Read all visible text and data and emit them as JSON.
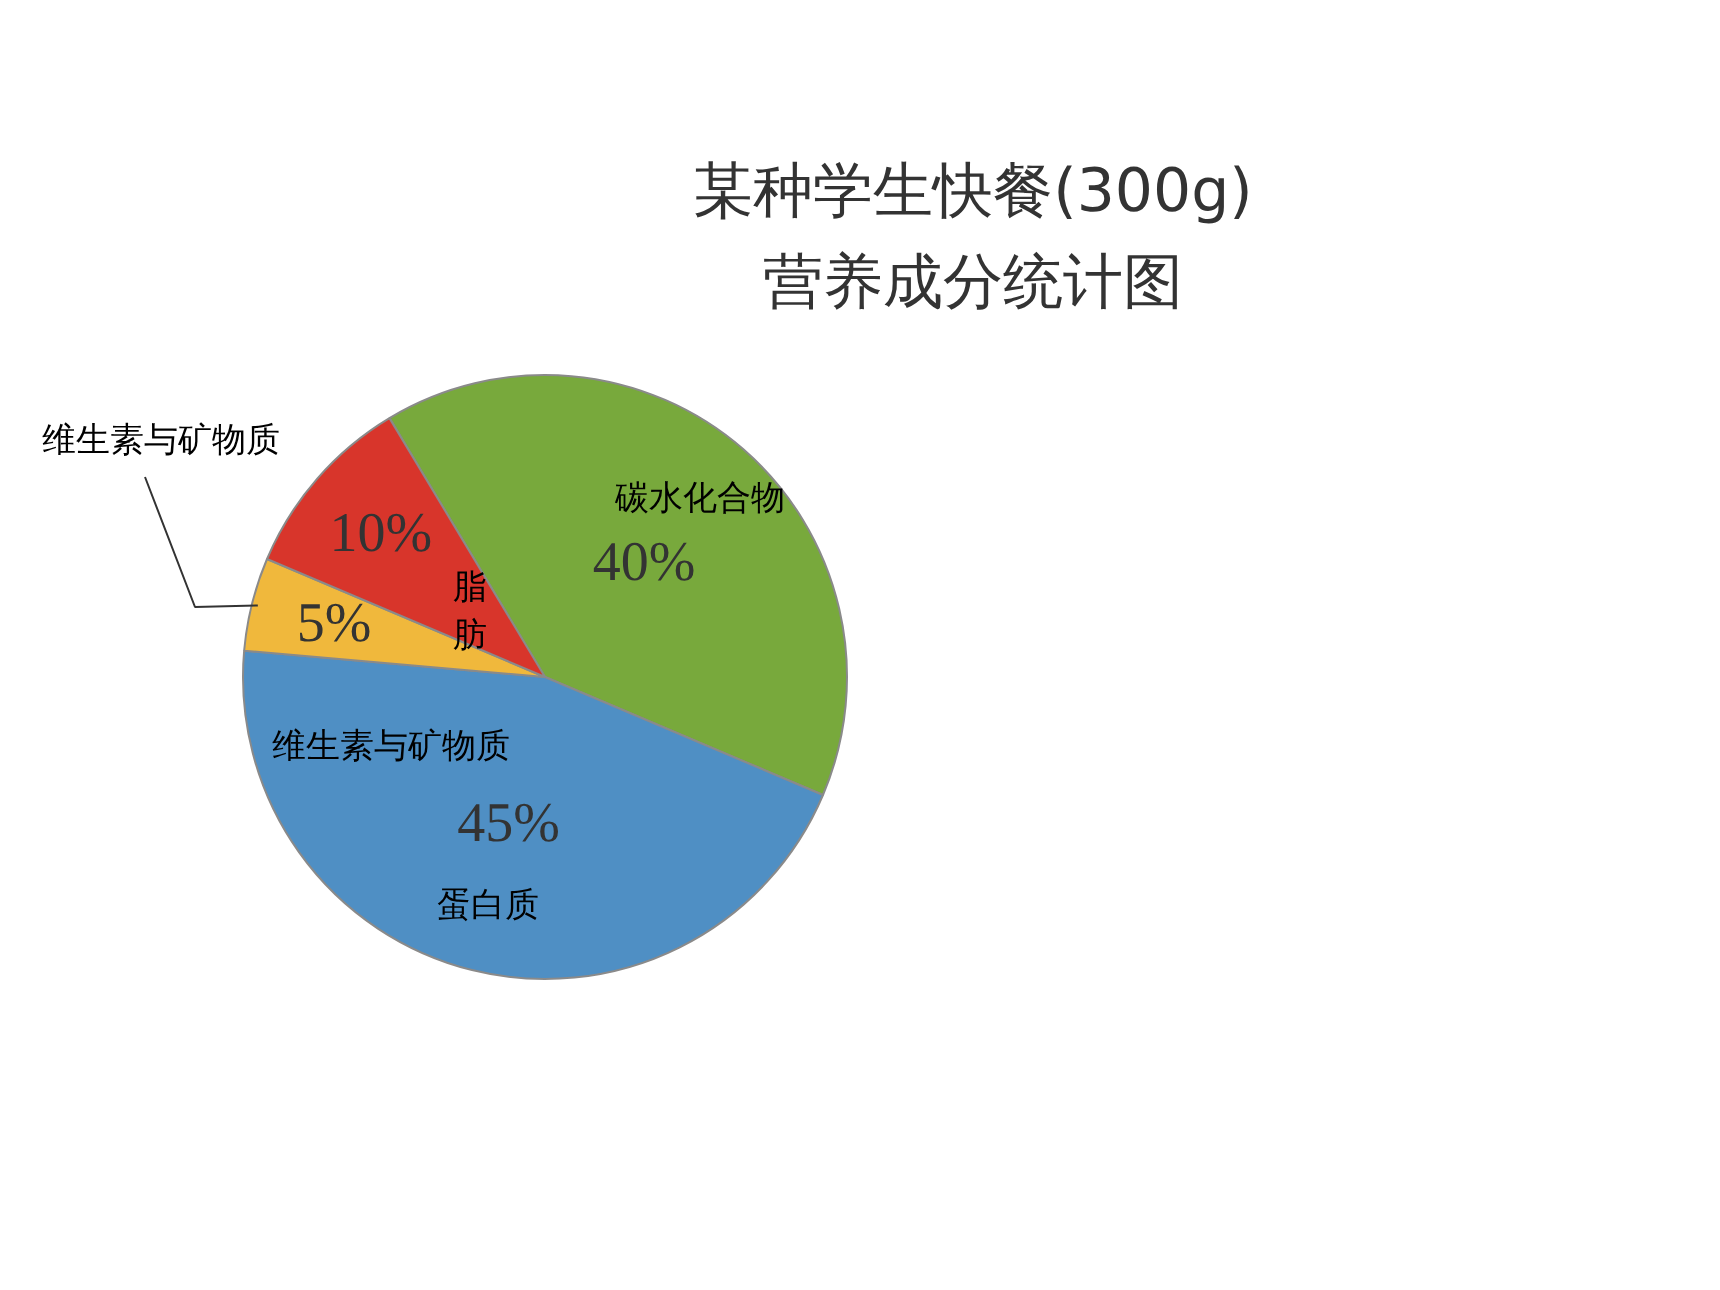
{
  "chart_data": {
    "type": "pie",
    "title": "某种学生快餐(300g)\n营养成分统计图",
    "categories": [
      "碳水化合物",
      "蛋白质",
      "维生素与矿物质",
      "脂肪"
    ],
    "values": [
      40,
      45,
      5,
      10
    ],
    "colors": [
      "#78a93c",
      "#4f8fc4",
      "#f0b83c",
      "#d8352b"
    ],
    "value_labels": [
      "40%",
      "45%",
      "5%",
      "10%"
    ],
    "annotations": [
      "维生素与矿物质"
    ]
  }
}
